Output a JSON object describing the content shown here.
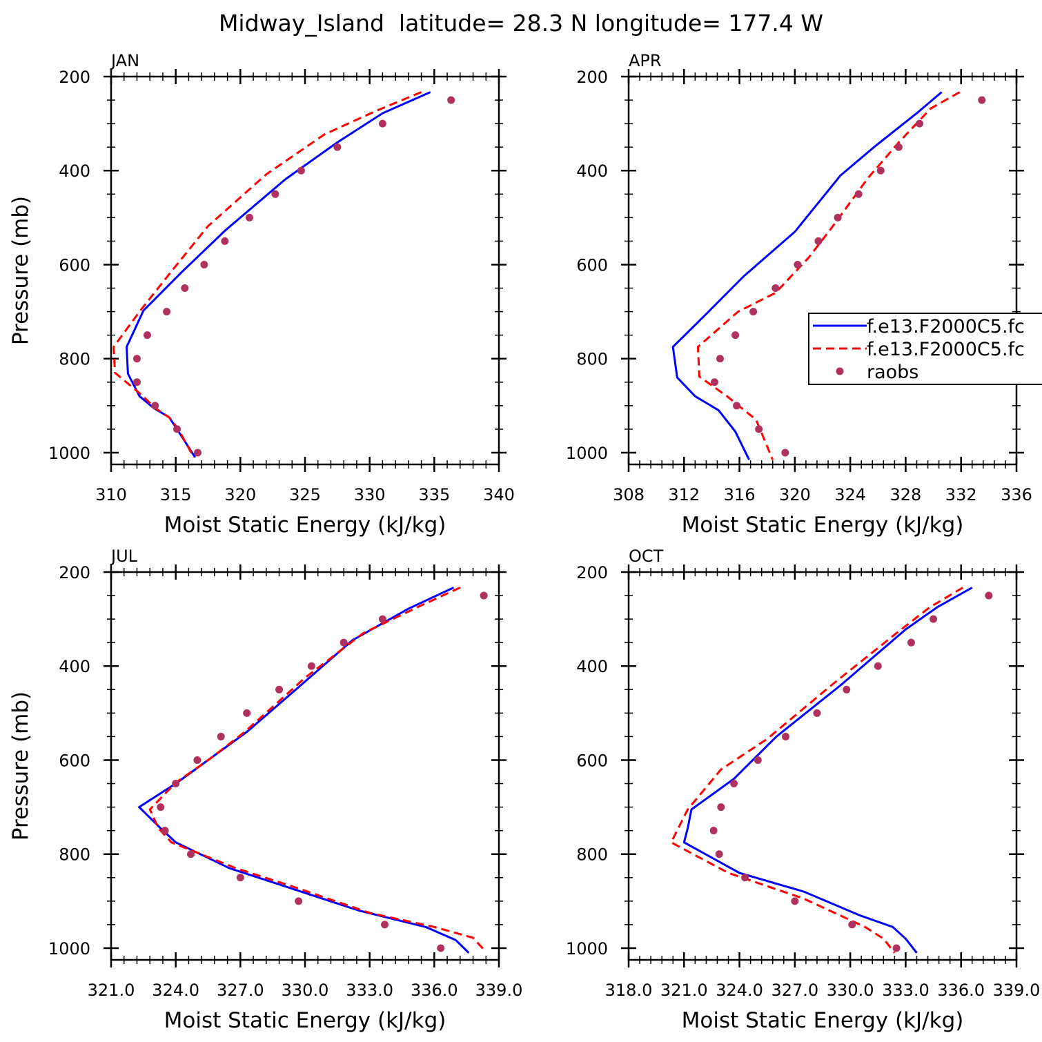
{
  "figure": {
    "title": "Midway_Island  latitude= 28.3 N longitude= 177.4 W"
  },
  "legend": {
    "entries": [
      {
        "label": "f.e13.F2000C5.fc",
        "style": "solid",
        "color": "#0000ff"
      },
      {
        "label": "f.e13.F2000C5.fc",
        "style": "dashed",
        "color": "#ff0000"
      },
      {
        "label": "raobs",
        "style": "dots",
        "color": "#b03060"
      }
    ]
  },
  "colors": {
    "model_solid": "#0000ff",
    "model_dashed": "#ff0000",
    "raobs": "#b03060"
  },
  "chart_data": [
    {
      "type": "line",
      "panel": "JAN",
      "xlabel": "Moist Static Energy (kJ/kg)",
      "ylabel": "Pressure (mb)",
      "xlim": [
        310,
        340
      ],
      "ylim": [
        1025,
        200
      ],
      "xticks": [
        310,
        315,
        320,
        325,
        330,
        335,
        340
      ],
      "xtick_labels": [
        "310",
        "315",
        "320",
        "325",
        "330",
        "335",
        "340"
      ],
      "yticks": [
        200,
        400,
        600,
        800,
        1000
      ],
      "ytick_labels": [
        "200",
        "400",
        "600",
        "800",
        "1000"
      ],
      "series": [
        {
          "name": "f.e13.F2000C5.fc",
          "style": "solid",
          "x": [
            334.7,
            331.0,
            327.5,
            323.5,
            318.8,
            315.5,
            312.5,
            311.2,
            311.3,
            312.2,
            313.3,
            314.5,
            315.1,
            316.5
          ],
          "y": [
            233,
            278,
            340,
            418,
            528,
            615,
            698,
            775,
            832,
            880,
            905,
            925,
            950,
            1010
          ]
        },
        {
          "name": "f.e13.F2000C5.fc",
          "style": "dashed",
          "x": [
            334.0,
            330.5,
            326.5,
            322.0,
            317.5,
            314.5,
            312.2,
            310.2,
            310.3,
            312.4,
            313.4,
            314.5,
            315.2,
            316.4
          ],
          "y": [
            233,
            273,
            323,
            408,
            518,
            620,
            700,
            775,
            830,
            878,
            905,
            925,
            950,
            1010
          ]
        },
        {
          "name": "raobs",
          "style": "dots",
          "x": [
            336.3,
            331.0,
            327.5,
            324.7,
            322.7,
            320.7,
            318.8,
            317.2,
            315.7,
            314.3,
            312.8,
            312.0,
            312.0,
            313.4,
            315.1,
            316.7
          ],
          "y": [
            250,
            300,
            350,
            400,
            450,
            500,
            550,
            600,
            650,
            700,
            750,
            800,
            850,
            900,
            950,
            1000
          ]
        }
      ]
    },
    {
      "type": "line",
      "panel": "APR",
      "xlabel": "Moist Static Energy (kJ/kg)",
      "ylabel": "",
      "xlim": [
        308,
        336
      ],
      "ylim": [
        1025,
        200
      ],
      "xticks": [
        308,
        312,
        316,
        320,
        324,
        328,
        332,
        336
      ],
      "xtick_labels": [
        "308",
        "312",
        "316",
        "320",
        "324",
        "328",
        "332",
        "336"
      ],
      "yticks": [
        200,
        400,
        600,
        800,
        1000
      ],
      "ytick_labels": [
        "200",
        "400",
        "600",
        "800",
        "1000"
      ],
      "series": [
        {
          "name": "f.e13.F2000C5.fc",
          "style": "solid",
          "x": [
            330.6,
            328.8,
            325.8,
            323.3,
            320.0,
            316.3,
            313.6,
            311.2,
            311.5,
            312.8,
            314.5,
            315.7,
            316.7
          ],
          "y": [
            233,
            278,
            348,
            410,
            530,
            625,
            705,
            775,
            840,
            880,
            910,
            955,
            1015
          ]
        },
        {
          "name": "f.e13.F2000C5.fc",
          "style": "dashed",
          "x": [
            331.9,
            329.8,
            327.5,
            325.3,
            322.7,
            321.0,
            318.6,
            315.9,
            313.0,
            313.1,
            315.1,
            317.2,
            318.4
          ],
          "y": [
            233,
            268,
            340,
            415,
            520,
            585,
            660,
            700,
            775,
            838,
            880,
            930,
            1015
          ]
        },
        {
          "name": "raobs",
          "style": "dots",
          "x": [
            333.5,
            329.0,
            327.5,
            326.2,
            324.6,
            323.1,
            321.7,
            320.2,
            318.6,
            317.0,
            315.7,
            314.6,
            314.2,
            315.8,
            317.4,
            319.3
          ],
          "y": [
            250,
            300,
            350,
            400,
            450,
            500,
            550,
            600,
            650,
            700,
            750,
            800,
            850,
            900,
            950,
            1000
          ]
        }
      ]
    },
    {
      "type": "line",
      "panel": "JUL",
      "xlabel": "Moist Static Energy (kJ/kg)",
      "ylabel": "Pressure (mb)",
      "xlim": [
        321.0,
        339.0
      ],
      "ylim": [
        1025,
        200
      ],
      "xticks": [
        321,
        324,
        327,
        330,
        333,
        336,
        339
      ],
      "xtick_labels": [
        "321.0",
        "324.0",
        "327.0",
        "330.0",
        "333.0",
        "336.0",
        "339.0"
      ],
      "yticks": [
        200,
        400,
        600,
        800,
        1000
      ],
      "ytick_labels": [
        "200",
        "400",
        "600",
        "800",
        "1000"
      ],
      "series": [
        {
          "name": "f.e13.F2000C5.fc",
          "style": "solid",
          "x": [
            336.9,
            334.8,
            332.2,
            329.7,
            327.3,
            325.5,
            324.0,
            322.3,
            323.3,
            324.0,
            326.5,
            329.5,
            332.5,
            335.6,
            337.0,
            337.6
          ],
          "y": [
            233,
            278,
            345,
            445,
            540,
            600,
            650,
            700,
            745,
            775,
            830,
            875,
            920,
            955,
            983,
            1010
          ]
        },
        {
          "name": "f.e13.F2000C5.fc",
          "style": "dashed",
          "x": [
            337.2,
            335.3,
            332.7,
            330.0,
            327.2,
            325.6,
            324.0,
            322.8,
            323.2,
            323.8,
            326.8,
            329.5,
            333.0,
            336.0,
            337.8,
            338.3
          ],
          "y": [
            233,
            273,
            330,
            425,
            540,
            597,
            648,
            705,
            745,
            775,
            830,
            870,
            925,
            955,
            978,
            1003
          ]
        },
        {
          "name": "raobs",
          "style": "dots",
          "x": [
            338.3,
            333.6,
            331.8,
            330.3,
            328.8,
            327.3,
            326.1,
            325.0,
            324.0,
            323.3,
            323.5,
            324.7,
            327.0,
            329.7,
            333.7,
            336.3
          ],
          "y": [
            250,
            300,
            350,
            400,
            450,
            500,
            550,
            600,
            650,
            700,
            750,
            800,
            850,
            900,
            950,
            1000
          ]
        }
      ]
    },
    {
      "type": "line",
      "panel": "OCT",
      "xlabel": "Moist Static Energy (kJ/kg)",
      "ylabel": "",
      "xlim": [
        318.0,
        339.0
      ],
      "ylim": [
        1025,
        200
      ],
      "xticks": [
        318,
        321,
        324,
        327,
        330,
        333,
        336,
        339
      ],
      "xtick_labels": [
        "318.0",
        "321.0",
        "324.0",
        "327.0",
        "330.0",
        "333.0",
        "336.0",
        "339.0"
      ],
      "yticks": [
        200,
        400,
        600,
        800,
        1000
      ],
      "ytick_labels": [
        "200",
        "400",
        "600",
        "800",
        "1000"
      ],
      "series": [
        {
          "name": "f.e13.F2000C5.fc",
          "style": "solid",
          "x": [
            336.6,
            334.7,
            333.0,
            329.5,
            326.0,
            323.7,
            321.4,
            321.2,
            321.0,
            324.0,
            327.5,
            330.5,
            332.3,
            333.0,
            333.6
          ],
          "y": [
            233,
            275,
            322,
            440,
            550,
            640,
            705,
            745,
            775,
            840,
            880,
            930,
            955,
            980,
            1010
          ]
        },
        {
          "name": "f.e13.F2000C5.fc",
          "style": "dashed",
          "x": [
            336.1,
            334.3,
            332.5,
            329.0,
            325.5,
            323.0,
            321.2,
            320.3,
            323.4,
            327.5,
            330.8,
            331.8,
            332.4
          ],
          "y": [
            233,
            275,
            330,
            440,
            555,
            620,
            705,
            775,
            840,
            895,
            955,
            980,
            1010
          ]
        },
        {
          "name": "raobs",
          "style": "dots",
          "x": [
            337.5,
            334.5,
            333.3,
            331.5,
            329.8,
            328.2,
            326.5,
            325.0,
            323.7,
            323.0,
            322.6,
            322.9,
            324.3,
            327.0,
            330.1,
            332.5
          ],
          "y": [
            250,
            300,
            350,
            400,
            450,
            500,
            550,
            600,
            650,
            700,
            750,
            800,
            850,
            900,
            950,
            1000
          ]
        }
      ]
    }
  ]
}
